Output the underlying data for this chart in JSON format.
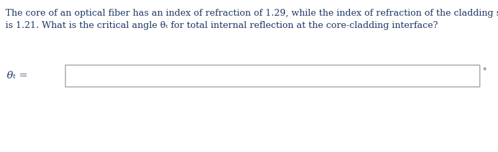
{
  "background_color": "#ffffff",
  "text_line1": "The core of an optical fiber has an index of refraction of 1.29, while the index of refraction of the cladding surrounding the core",
  "text_line2": "is 1.21. What is the critical angle θₜ for total internal reflection at the core-cladding interface?",
  "text_color": "#1f3864",
  "label_text": "θₜ =",
  "degree_symbol": "°",
  "font_size_body": 9.5,
  "font_size_label": 11,
  "font_size_degree": 8
}
